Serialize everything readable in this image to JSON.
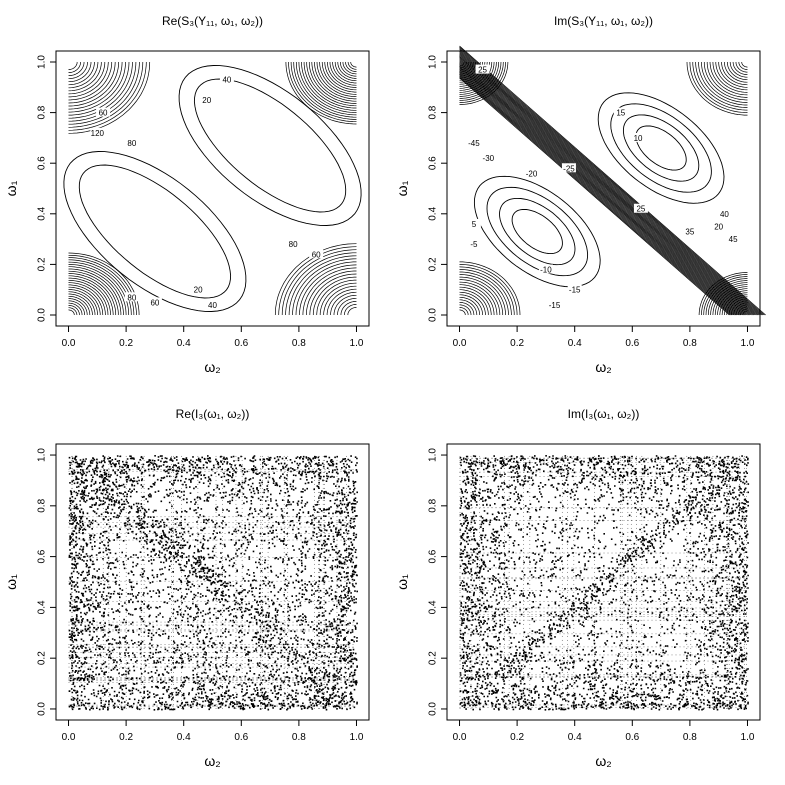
{
  "chart_data": [
    {
      "type": "contour",
      "title": "Re(S₃(Y₁₁, ω₁, ω₂))",
      "xlabel": "ω₂",
      "ylabel": "ω₁",
      "xlim": [
        0,
        1
      ],
      "ylim": [
        0,
        1
      ],
      "x_ticks": [
        "0.0",
        "0.2",
        "0.4",
        "0.6",
        "0.8",
        "1.0"
      ],
      "y_ticks": [
        "0.0",
        "0.2",
        "0.4",
        "0.6",
        "0.8",
        "1.0"
      ],
      "contour_labels": [
        "40",
        "20",
        "60",
        "80",
        "120",
        "80",
        "60",
        "20",
        "40",
        "80",
        "60"
      ]
    },
    {
      "type": "contour",
      "title": "Im(S₃(Y₁₁, ω₁, ω₂))",
      "xlabel": "ω₂",
      "ylabel": "ω₁",
      "xlim": [
        0,
        1
      ],
      "ylim": [
        0,
        1
      ],
      "x_ticks": [
        "0.0",
        "0.2",
        "0.4",
        "0.6",
        "0.8",
        "1.0"
      ],
      "y_ticks": [
        "0.0",
        "0.2",
        "0.4",
        "0.6",
        "0.8",
        "1.0"
      ],
      "contour_labels": [
        "25",
        "15",
        "10",
        "-45",
        "-30",
        "-20",
        "-25",
        "25",
        "35",
        "20",
        "45",
        "40",
        "-10",
        "-15",
        "5",
        "-5",
        "-15"
      ]
    },
    {
      "type": "scatter",
      "title": "Re(I₃(ω₁, ω₂))",
      "xlabel": "ω₂",
      "ylabel": "ω₁",
      "xlim": [
        0,
        1
      ],
      "ylim": [
        0,
        1
      ],
      "x_ticks": [
        "0.0",
        "0.2",
        "0.4",
        "0.6",
        "0.8",
        "1.0"
      ],
      "y_ticks": [
        "0.0",
        "0.2",
        "0.4",
        "0.6",
        "0.8",
        "1.0"
      ]
    },
    {
      "type": "scatter",
      "title": "Im(I₃(ω₁, ω₂))",
      "xlabel": "ω₂",
      "ylabel": "ω₁",
      "xlim": [
        0,
        1
      ],
      "ylim": [
        0,
        1
      ],
      "x_ticks": [
        "0.0",
        "0.2",
        "0.4",
        "0.6",
        "0.8",
        "1.0"
      ],
      "y_ticks": [
        "0.0",
        "0.2",
        "0.4",
        "0.6",
        "0.8",
        "1.0"
      ]
    }
  ]
}
